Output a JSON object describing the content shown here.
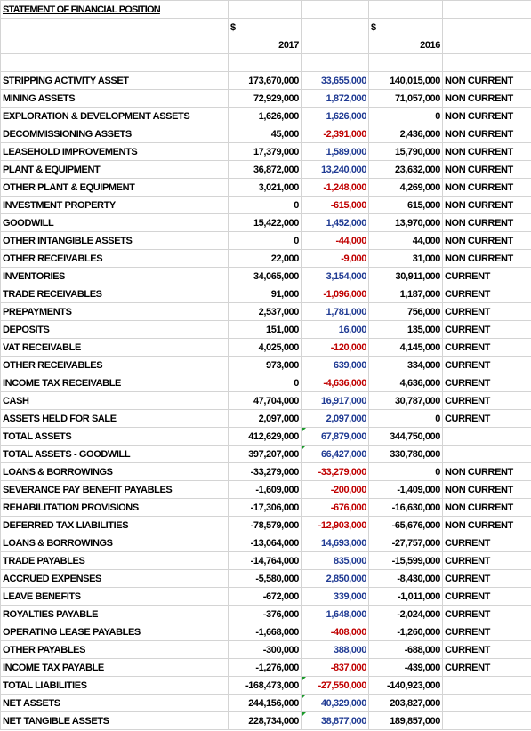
{
  "header": {
    "title": "STATEMENT OF FINANCIAL POSITION",
    "currency": [
      "$",
      "$"
    ],
    "years": [
      "2017",
      "2016"
    ]
  },
  "table": {
    "rows": [
      [
        "STRIPPING ACTIVITY ASSET",
        "173,670,000",
        "33,655,000",
        "140,015,000",
        "NON CURRENT"
      ],
      [
        "MINING ASSETS",
        "72,929,000",
        "1,872,000",
        "71,057,000",
        "NON CURRENT"
      ],
      [
        "EXPLORATION & DEVELOPMENT ASSETS",
        "1,626,000",
        "1,626,000",
        "0",
        "NON CURRENT"
      ],
      [
        "DECOMMISSIONING ASSETS",
        "45,000",
        "-2,391,000",
        "2,436,000",
        "NON CURRENT"
      ],
      [
        "LEASEHOLD IMPROVEMENTS",
        "17,379,000",
        "1,589,000",
        "15,790,000",
        "NON CURRENT"
      ],
      [
        "PLANT & EQUIPMENT",
        "36,872,000",
        "13,240,000",
        "23,632,000",
        "NON CURRENT"
      ],
      [
        "OTHER PLANT & EQUIPMENT",
        "3,021,000",
        "-1,248,000",
        "4,269,000",
        "NON CURRENT"
      ],
      [
        "INVESTMENT PROPERTY",
        "0",
        "-615,000",
        "615,000",
        "NON CURRENT"
      ],
      [
        "GOODWILL",
        "15,422,000",
        "1,452,000",
        "13,970,000",
        "NON CURRENT"
      ],
      [
        "OTHER INTANGIBLE ASSETS",
        "0",
        "-44,000",
        "44,000",
        "NON CURRENT"
      ],
      [
        "OTHER RECEIVABLES",
        "22,000",
        "-9,000",
        "31,000",
        "NON CURRENT"
      ],
      [
        "INVENTORIES",
        "34,065,000",
        "3,154,000",
        "30,911,000",
        "CURRENT"
      ],
      [
        "TRADE RECEIVABLES",
        "91,000",
        "-1,096,000",
        "1,187,000",
        "CURRENT"
      ],
      [
        "PREPAYMENTS",
        "2,537,000",
        "1,781,000",
        "756,000",
        "CURRENT"
      ],
      [
        "DEPOSITS",
        "151,000",
        "16,000",
        "135,000",
        "CURRENT"
      ],
      [
        "VAT RECEIVABLE",
        "4,025,000",
        "-120,000",
        "4,145,000",
        "CURRENT"
      ],
      [
        "OTHER RECEIVABLES",
        "973,000",
        "639,000",
        "334,000",
        "CURRENT"
      ],
      [
        "INCOME TAX RECEIVABLE",
        "0",
        "-4,636,000",
        "4,636,000",
        "CURRENT"
      ],
      [
        "CASH",
        "47,704,000",
        "16,917,000",
        "30,787,000",
        "CURRENT"
      ],
      [
        "ASSETS HELD FOR SALE",
        "2,097,000",
        "2,097,000",
        "0",
        "CURRENT"
      ],
      [
        "TOTAL ASSETS",
        "412,629,000",
        "67,879,000",
        "344,750,000"
      ],
      [
        "TOTAL ASSETS - GOODWILL",
        "397,207,000",
        "66,427,000",
        "330,780,000"
      ],
      [
        "LOANS & BORROWINGS",
        "-33,279,000",
        "-33,279,000",
        "0",
        "NON CURRENT"
      ],
      [
        "SEVERANCE PAY BENEFIT PAYABLES",
        "-1,609,000",
        "-200,000",
        "-1,409,000",
        "NON CURRENT"
      ],
      [
        "REHABILITATION PROVISIONS",
        "-17,306,000",
        "-676,000",
        "-16,630,000",
        "NON CURRENT"
      ],
      [
        "DEFERRED TAX LIABILITIES",
        "-78,579,000",
        "-12,903,000",
        "-65,676,000",
        "NON CURRENT"
      ],
      [
        "LOANS & BORROWINGS",
        "-13,064,000",
        "14,693,000",
        "-27,757,000",
        "CURRENT"
      ],
      [
        "TRADE PAYABLES",
        "-14,764,000",
        "835,000",
        "-15,599,000",
        "CURRENT"
      ],
      [
        "ACCRUED EXPENSES",
        "-5,580,000",
        "2,850,000",
        "-8,430,000",
        "CURRENT"
      ],
      [
        "LEAVE BENEFITS",
        "-672,000",
        "339,000",
        "-1,011,000",
        "CURRENT"
      ],
      [
        "ROYALTIES PAYABLE",
        "-376,000",
        "1,648,000",
        "-2,024,000",
        "CURRENT"
      ],
      [
        "OPERATING LEASE PAYABLES",
        "-1,668,000",
        "-408,000",
        "-1,260,000",
        "CURRENT"
      ],
      [
        "OTHER PAYABLES",
        "-300,000",
        "388,000",
        "-688,000",
        "CURRENT"
      ],
      [
        "INCOME TAX PAYABLE",
        "-1,276,000",
        "-837,000",
        "-439,000",
        "CURRENT"
      ],
      [
        "TOTAL LIABILITIES",
        "-168,473,000",
        "-27,550,000",
        "-140,923,000"
      ],
      [
        "NET ASSETS",
        "244,156,000",
        "40,329,000",
        "203,827,000"
      ],
      [
        "NET TANGIBLE ASSETS",
        "228,734,000",
        "38,877,000",
        "189,857,000"
      ]
    ]
  }
}
